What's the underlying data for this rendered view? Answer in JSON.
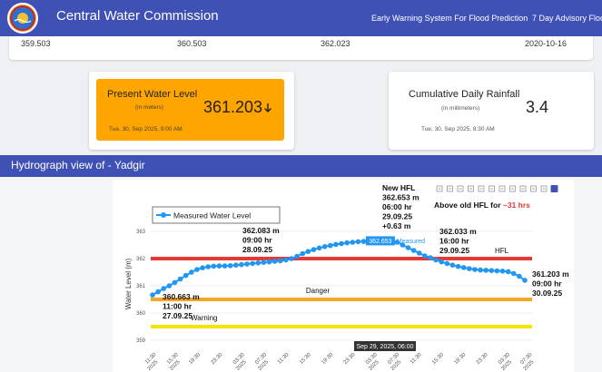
{
  "navbar": {
    "title": "Central Water Commission",
    "links": [
      "Early Warning System For Flood Prediction",
      "7 Day Advisory Flood"
    ]
  },
  "summary_row": [
    "359.503",
    "360.503",
    "362.023",
    "2020-10-16"
  ],
  "water_level_card": {
    "title": "Present Water Level",
    "unit": "(in meters)",
    "value": "361.203",
    "trend_icon": "arrow-down-icon",
    "timestamp": "Tue, 30, Sep 2025, 9:00 AM",
    "color": "#ffa500"
  },
  "rainfall_card": {
    "title": "Cumulative Daily Rainfall",
    "unit": "(in millimeters)",
    "value": "3.4",
    "timestamp": "Tue, 30, Sep 2025, 8:30 AM"
  },
  "section": {
    "title": "Hydrograph view of - Yadgir"
  },
  "toolbar": {
    "icons": [
      "zoom-in-icon",
      "pan-icon",
      "box-select-icon",
      "lasso-icon",
      "zoom-plus-icon",
      "zoom-minus-icon",
      "autoscale-icon",
      "home-icon",
      "spike-icon",
      "hover-closest-icon",
      "hover-compare-icon",
      "plotly-logo-icon"
    ]
  },
  "chart_data": {
    "type": "line",
    "title": "",
    "xlabel": "",
    "ylabel": "Water Level (m)",
    "ylim": [
      359,
      363
    ],
    "yticks": [
      "359",
      "360",
      "361",
      "362",
      "363"
    ],
    "xticks": [
      "11:30",
      "15:30",
      "19:30",
      "23:30",
      "03:30",
      "07:30",
      "11:30",
      "15:30",
      "19:30",
      "23:30",
      "03:30",
      "07:30",
      "11:30",
      "15:30",
      "19:30",
      "23:30",
      "03:30",
      "07:30"
    ],
    "xtick_sublabels": [
      "2025",
      "2025",
      "",
      "",
      "2025",
      "2025",
      "",
      "",
      "",
      "",
      "2025",
      "2025",
      "",
      "",
      "",
      "",
      "2025",
      "2025"
    ],
    "legend": {
      "label": "Measured Water Level",
      "position": "top-left"
    },
    "series": [
      {
        "name": "Measured Water Level",
        "color": "#2196f3",
        "values": [
          360.663,
          360.78,
          360.9,
          361.0,
          361.12,
          361.25,
          361.38,
          361.5,
          361.6,
          361.66,
          361.7,
          361.72,
          361.73,
          361.73,
          361.74,
          361.76,
          361.78,
          361.8,
          361.82,
          361.84,
          361.86,
          361.88,
          361.9,
          361.92,
          361.95,
          362.0,
          362.083,
          362.18,
          362.26,
          362.33,
          362.39,
          362.44,
          362.48,
          362.52,
          362.55,
          362.58,
          362.6,
          362.62,
          362.63,
          362.64,
          362.65,
          362.653,
          362.65,
          362.64,
          362.6,
          362.5,
          362.4,
          362.3,
          362.2,
          362.1,
          362.033,
          361.95,
          361.88,
          361.82,
          361.76,
          361.71,
          361.67,
          361.63,
          361.6,
          361.58,
          361.57,
          361.56,
          361.55,
          361.54,
          361.52,
          361.45,
          361.35,
          361.203
        ]
      }
    ],
    "thresholds": [
      {
        "name": "HFL",
        "value": 362.0,
        "color": "#e53935"
      },
      {
        "name": "Danger",
        "value": 360.5,
        "color": "#f5a623"
      },
      {
        "name": "Warning",
        "value": 359.5,
        "color": "#f2e600"
      }
    ],
    "annotations": [
      {
        "lines": [
          "360.663 m",
          "11:00 hr",
          "27.09.25"
        ]
      },
      {
        "lines": [
          "362.083 m",
          "09:00 hr",
          "28.09.25"
        ]
      },
      {
        "lines": [
          "New HFL",
          "362.653 m",
          "06:00 hr",
          "29.09.25",
          "+0.63 m"
        ]
      },
      {
        "lines": [
          "362.033 m",
          "16:00 hr",
          "29.09.25"
        ]
      },
      {
        "lines": [
          "361.203 m",
          "09:00 hr",
          "30.09.25"
        ]
      }
    ],
    "hfl_note": {
      "prefix": "Above old HFL for",
      "suffix": "~31 hrs"
    },
    "hover": {
      "x_label": "Sep 29, 2025, 06:00",
      "y_label": "362.653",
      "series_label": "Measured"
    }
  }
}
